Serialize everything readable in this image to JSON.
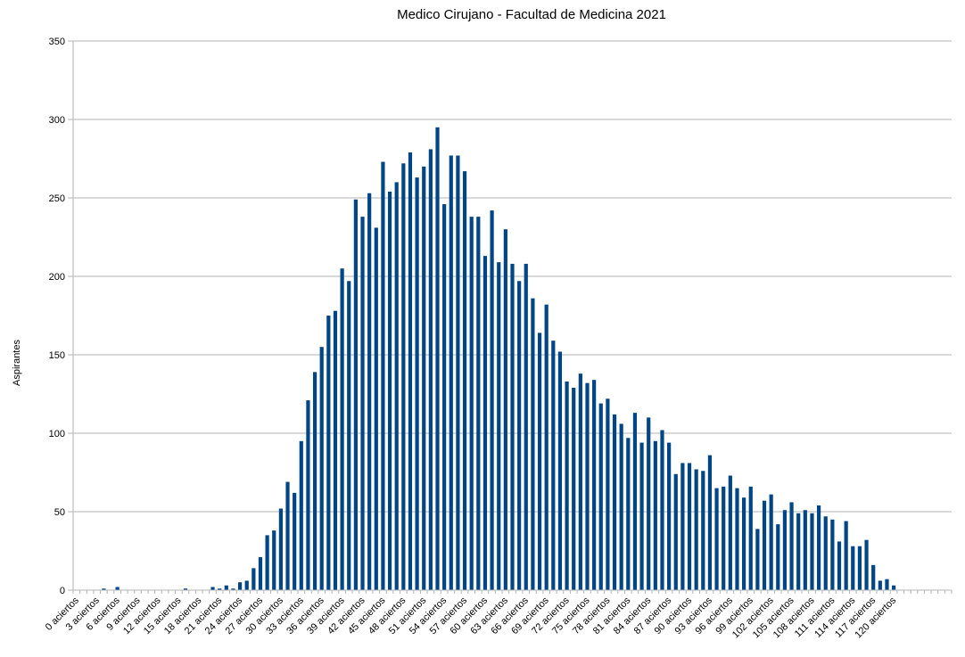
{
  "chart_data": {
    "type": "bar",
    "title": "Medico Cirujano - Facultad de Medicina 2021",
    "xlabel": "",
    "ylabel": "Aspirantes",
    "ylim": [
      0,
      350
    ],
    "yticks": [
      0,
      50,
      100,
      150,
      200,
      250,
      300,
      350
    ],
    "grid": true,
    "bar_color": "#004586",
    "grid_color": "#b3b3b3",
    "categories": [
      "0 aciertos",
      "1 aciertos",
      "2 aciertos",
      "3 aciertos",
      "4 aciertos",
      "5 aciertos",
      "6 aciertos",
      "7 aciertos",
      "8 aciertos",
      "9 aciertos",
      "10 aciertos",
      "11 aciertos",
      "12 aciertos",
      "13 aciertos",
      "14 aciertos",
      "15 aciertos",
      "16 aciertos",
      "17 aciertos",
      "18 aciertos",
      "19 aciertos",
      "20 aciertos",
      "21 aciertos",
      "22 aciertos",
      "23 aciertos",
      "24 aciertos",
      "25 aciertos",
      "26 aciertos",
      "27 aciertos",
      "28 aciertos",
      "29 aciertos",
      "30 aciertos",
      "31 aciertos",
      "32 aciertos",
      "33 aciertos",
      "34 aciertos",
      "35 aciertos",
      "36 aciertos",
      "37 aciertos",
      "38 aciertos",
      "39 aciertos",
      "40 aciertos",
      "41 aciertos",
      "42 aciertos",
      "43 aciertos",
      "44 aciertos",
      "45 aciertos",
      "46 aciertos",
      "47 aciertos",
      "48 aciertos",
      "49 aciertos",
      "50 aciertos",
      "51 aciertos",
      "52 aciertos",
      "53 aciertos",
      "54 aciertos",
      "55 aciertos",
      "56 aciertos",
      "57 aciertos",
      "58 aciertos",
      "59 aciertos",
      "60 aciertos",
      "61 aciertos",
      "62 aciertos",
      "63 aciertos",
      "64 aciertos",
      "65 aciertos",
      "66 aciertos",
      "67 aciertos",
      "68 aciertos",
      "69 aciertos",
      "70 aciertos",
      "71 aciertos",
      "72 aciertos",
      "73 aciertos",
      "74 aciertos",
      "75 aciertos",
      "76 aciertos",
      "77 aciertos",
      "78 aciertos",
      "79 aciertos",
      "80 aciertos",
      "81 aciertos",
      "82 aciertos",
      "83 aciertos",
      "84 aciertos",
      "85 aciertos",
      "86 aciertos",
      "87 aciertos",
      "88 aciertos",
      "89 aciertos",
      "90 aciertos",
      "91 aciertos",
      "92 aciertos",
      "93 aciertos",
      "94 aciertos",
      "95 aciertos",
      "96 aciertos",
      "97 aciertos",
      "98 aciertos",
      "99 aciertos",
      "100 aciertos",
      "101 aciertos",
      "102 aciertos",
      "103 aciertos",
      "104 aciertos",
      "105 aciertos",
      "106 aciertos",
      "107 aciertos",
      "108 aciertos",
      "109 aciertos",
      "110 aciertos",
      "111 aciertos",
      "112 aciertos",
      "113 aciertos",
      "114 aciertos",
      "115 aciertos",
      "116 aciertos",
      "117 aciertos",
      "118 aciertos",
      "119 aciertos",
      "120 aciertos",
      "121 aciertos",
      "122 aciertos",
      "123 aciertos",
      "124 aciertos",
      "125 aciertos",
      "126 aciertos",
      "127 aciertos",
      "128 aciertos"
    ],
    "tick_labels": [
      "0 aciertos",
      "3 aciertos",
      "6 aciertos",
      "9 aciertos",
      "12 aciertos",
      "15 aciertos",
      "18 aciertos",
      "21 aciertos",
      "24 aciertos",
      "27 aciertos",
      "30 aciertos",
      "33 aciertos",
      "36 aciertos",
      "39 aciertos",
      "42 aciertos",
      "45 aciertos",
      "48 aciertos",
      "51 aciertos",
      "54 aciertos",
      "57 aciertos",
      "60 aciertos",
      "63 aciertos",
      "66 aciertos",
      "69 aciertos",
      "72 aciertos",
      "75 aciertos",
      "78 aciertos",
      "81 aciertos",
      "84 aciertos",
      "87 aciertos",
      "90 aciertos",
      "93 aciertos",
      "96 aciertos",
      "99 aciertos",
      "102 aciertos",
      "105 aciertos",
      "108 aciertos",
      "111 aciertos",
      "114 aciertos",
      "117 aciertos",
      "120 aciertos"
    ],
    "values": [
      0,
      0,
      0,
      0,
      1,
      0,
      2,
      0,
      0,
      0,
      0,
      0,
      0,
      0,
      0,
      0,
      1,
      0,
      0,
      0,
      2,
      1,
      3,
      1,
      5,
      6,
      14,
      21,
      35,
      38,
      52,
      69,
      62,
      95,
      121,
      139,
      155,
      175,
      178,
      205,
      197,
      249,
      238,
      253,
      231,
      273,
      254,
      260,
      272,
      279,
      263,
      270,
      281,
      295,
      246,
      277,
      277,
      267,
      238,
      238,
      213,
      242,
      209,
      230,
      208,
      197,
      208,
      186,
      164,
      182,
      159,
      152,
      133,
      129,
      138,
      132,
      134,
      119,
      122,
      112,
      106,
      97,
      113,
      94,
      110,
      95,
      102,
      94,
      74,
      81,
      81,
      77,
      76,
      86,
      65,
      66,
      73,
      65,
      59,
      66,
      39,
      57,
      61,
      42,
      51,
      56,
      49,
      51,
      49,
      54,
      47,
      45,
      31,
      44,
      28,
      28,
      32,
      16,
      6,
      7,
      3,
      0,
      0,
      0,
      0,
      0,
      0,
      0,
      0
    ]
  }
}
